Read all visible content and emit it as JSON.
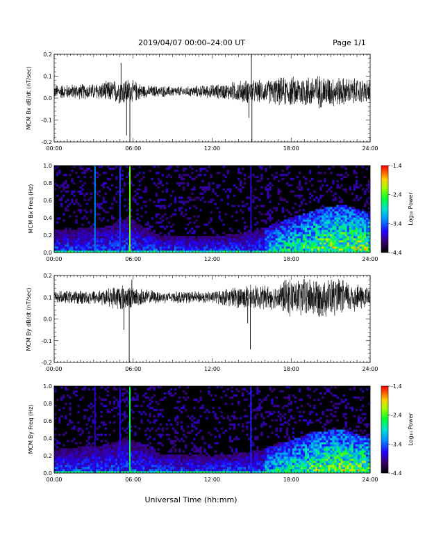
{
  "header": {
    "title": "2019/04/07  00:00–24:00 UT",
    "page": "Page 1/1"
  },
  "footer": {
    "xlabel": "Universal Time (hh:mm)"
  },
  "chart_data": [
    {
      "type": "line",
      "ylabel": "MCM Bx dB/dt (nT/sec)",
      "xlim": [
        0,
        24
      ],
      "ylim": [
        -0.2,
        0.2
      ],
      "xticks": [
        "00:00",
        "06:00",
        "12:00",
        "18:00",
        "24:00"
      ],
      "yticks": [
        "-0.2",
        "-0.1",
        "0.0",
        "0.1",
        "0.2"
      ],
      "baseline": 0.03,
      "noise_envelope": [
        [
          0,
          0.035
        ],
        [
          3,
          0.04
        ],
        [
          4.8,
          0.06
        ],
        [
          5.5,
          0.07
        ],
        [
          7,
          0.03
        ],
        [
          10,
          0.025
        ],
        [
          13,
          0.04
        ],
        [
          14.5,
          0.06
        ],
        [
          16,
          0.055
        ],
        [
          17,
          0.07
        ],
        [
          19,
          0.08
        ],
        [
          20,
          0.085
        ],
        [
          22,
          0.07
        ],
        [
          24,
          0.06
        ]
      ],
      "spikes": [
        [
          5.08,
          0.16
        ],
        [
          5.5,
          -0.17
        ],
        [
          5.75,
          -0.2
        ],
        [
          14.8,
          -0.09
        ],
        [
          14.98,
          0.2
        ],
        [
          15.02,
          -0.2
        ]
      ]
    },
    {
      "type": "heatmap",
      "ylabel": "MCM Bx Freq (Hz)",
      "xlim": [
        0,
        24
      ],
      "ylim": [
        0,
        1.0
      ],
      "xticks": [
        "00:00",
        "06:00",
        "12:00",
        "18:00",
        "24:00"
      ],
      "yticks": [
        "0.0",
        "0.2",
        "0.4",
        "0.6",
        "0.8",
        "1.0"
      ],
      "colorbar": {
        "label": "Log₁₀ Power",
        "ticks": [
          "-1.4",
          "-2.4",
          "-3.4",
          "-4.4"
        ],
        "range": [
          -4.4,
          -1.4
        ]
      },
      "vertical_lines": [
        [
          3.1,
          -3.3
        ],
        [
          5.0,
          -3.5
        ],
        [
          5.75,
          -2.3
        ],
        [
          14.95,
          -3.8
        ]
      ],
      "activity_envelope": [
        [
          0,
          0.25
        ],
        [
          4,
          0.3
        ],
        [
          5.5,
          0.4
        ],
        [
          8,
          0.2
        ],
        [
          12,
          0.18
        ],
        [
          15,
          0.25
        ],
        [
          16,
          0.28
        ],
        [
          18,
          0.4
        ],
        [
          20,
          0.5
        ],
        [
          22,
          0.55
        ],
        [
          24,
          0.45
        ]
      ]
    },
    {
      "type": "line",
      "ylabel": "MCM By dB/dt (nT/sec)",
      "xlim": [
        0,
        24
      ],
      "ylim": [
        -0.2,
        0.2
      ],
      "xticks": [
        "00:00",
        "06:00",
        "12:00",
        "18:00",
        "24:00"
      ],
      "yticks": [
        "-0.2",
        "-0.1",
        "0.0",
        "0.1",
        "0.2"
      ],
      "baseline": 0.1,
      "noise_envelope": [
        [
          0,
          0.03
        ],
        [
          4,
          0.04
        ],
        [
          5,
          0.07
        ],
        [
          6,
          0.05
        ],
        [
          8,
          0.03
        ],
        [
          12,
          0.03
        ],
        [
          14.3,
          0.06
        ],
        [
          15.5,
          0.06
        ],
        [
          17,
          0.06
        ],
        [
          17.5,
          0.09
        ],
        [
          19,
          0.1
        ],
        [
          21,
          0.1
        ],
        [
          22.5,
          0.08
        ],
        [
          24,
          0.05
        ]
      ],
      "spikes": [
        [
          5.3,
          -0.05
        ],
        [
          5.7,
          -0.2
        ],
        [
          5.9,
          0.18
        ],
        [
          14.7,
          -0.02
        ],
        [
          14.9,
          -0.14
        ]
      ]
    },
    {
      "type": "heatmap",
      "ylabel": "MCM By Freq (Hz)",
      "xlim": [
        0,
        24
      ],
      "ylim": [
        0,
        1.0
      ],
      "xticks": [
        "00:00",
        "06:00",
        "12:00",
        "18:00",
        "24:00"
      ],
      "yticks": [
        "0.0",
        "0.2",
        "0.4",
        "0.6",
        "0.8",
        "1.0"
      ],
      "colorbar": {
        "label": "Log₁₀ Power",
        "ticks": [
          "-1.4",
          "-2.4",
          "-3.4",
          "-4.4"
        ],
        "range": [
          -4.4,
          -1.4
        ]
      },
      "vertical_lines": [
        [
          3.1,
          -3.8
        ],
        [
          5.0,
          -3.7
        ],
        [
          5.75,
          -2.6
        ],
        [
          14.95,
          -3.6
        ]
      ],
      "activity_envelope": [
        [
          0,
          0.28
        ],
        [
          4,
          0.32
        ],
        [
          5.5,
          0.42
        ],
        [
          8,
          0.22
        ],
        [
          12,
          0.2
        ],
        [
          15,
          0.25
        ],
        [
          16,
          0.28
        ],
        [
          18,
          0.38
        ],
        [
          20,
          0.48
        ],
        [
          22,
          0.5
        ],
        [
          24,
          0.4
        ]
      ]
    }
  ]
}
